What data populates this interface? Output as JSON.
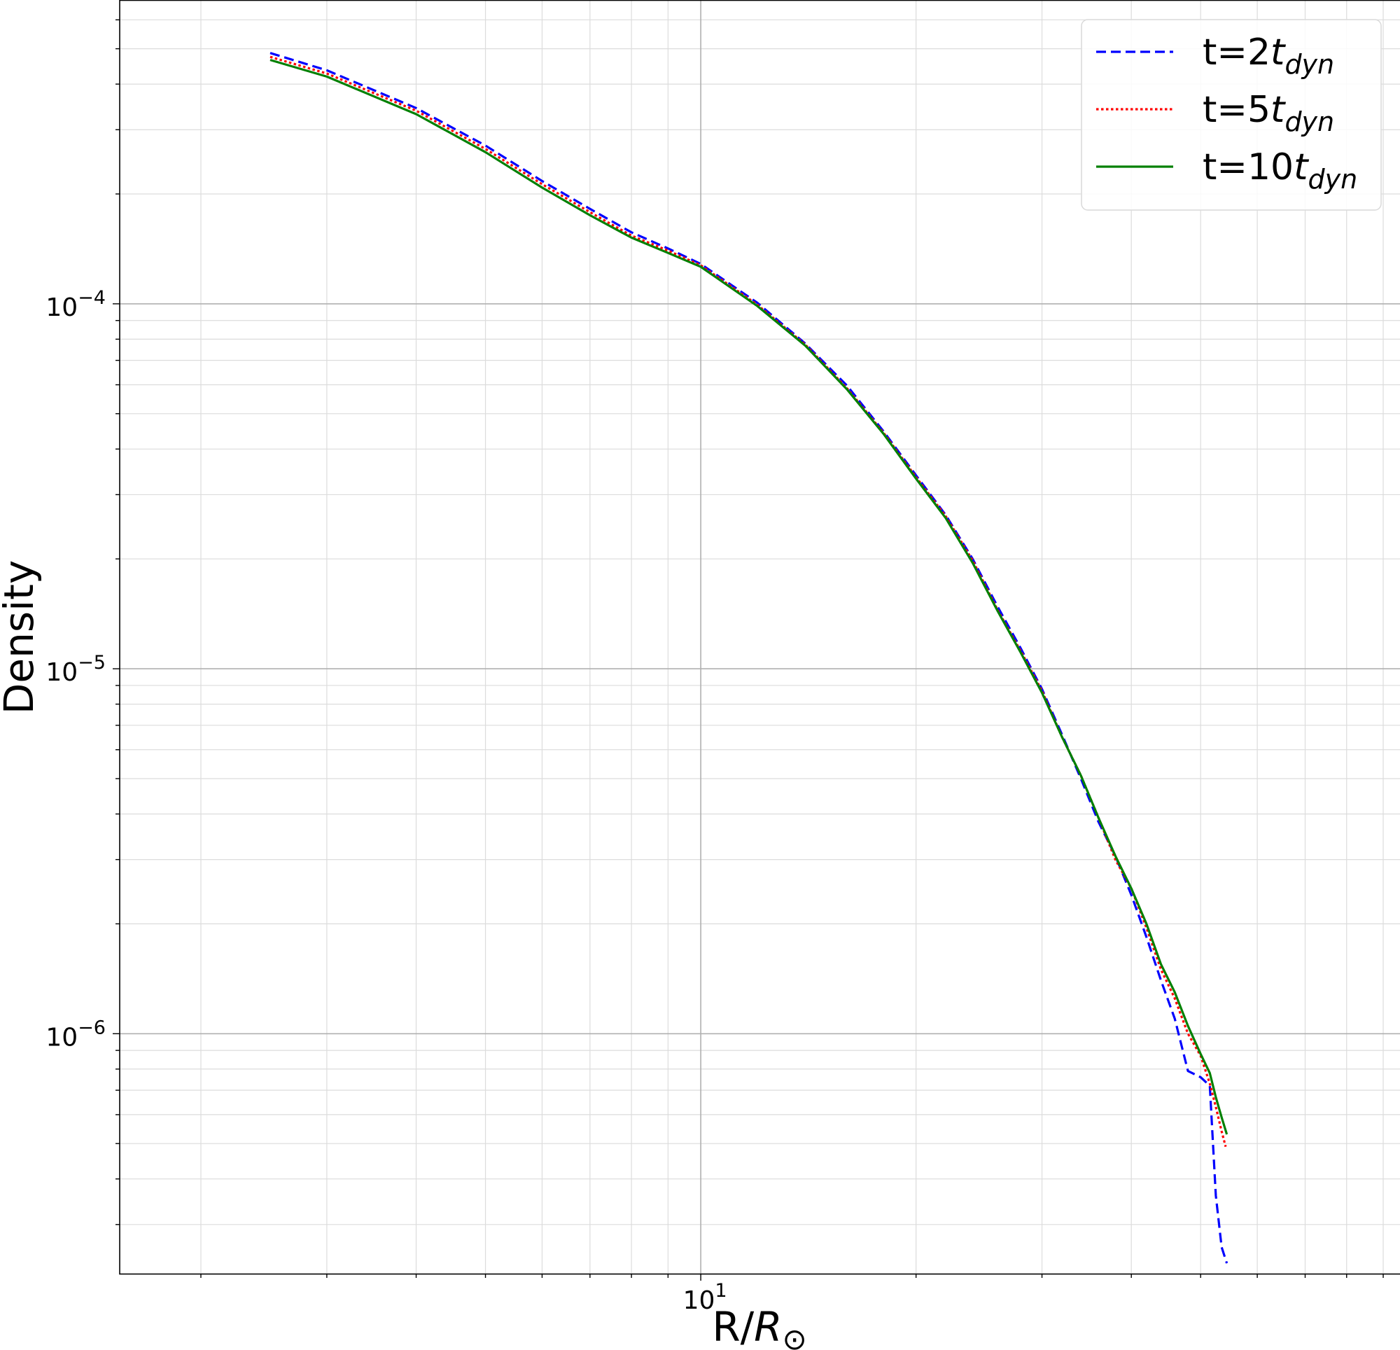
{
  "chart_data": {
    "type": "line",
    "xlabel": "R/R",
    "xlabel_sub": "⊙",
    "ylabel": "Density",
    "xscale": "log",
    "yscale": "log",
    "xlim": [
      1.54,
      95.0
    ],
    "ylim": [
      2.2e-07,
      0.00068
    ],
    "grid": true,
    "legend_position": "top-right",
    "x_tick_labels": [
      {
        "value": 10,
        "base": "10",
        "exp": "1"
      }
    ],
    "y_tick_labels": [
      {
        "value": 0.0001,
        "base": "10",
        "exp": "−4"
      },
      {
        "value": 1e-05,
        "base": "10",
        "exp": "−5"
      },
      {
        "value": 1e-06,
        "base": "10",
        "exp": "−6"
      }
    ],
    "series": [
      {
        "name": "t=2t",
        "name_sub": "dyn",
        "color": "#0000ff",
        "style": "dashed",
        "x": [
          2.5,
          3.0,
          4.0,
          5.0,
          6.0,
          7.0,
          8.0,
          9.0,
          10.0,
          12.0,
          14.0,
          16.0,
          18.0,
          20.0,
          22.0,
          24.0,
          26.0,
          28.0,
          30.0,
          32.0,
          34.0,
          36.0,
          38.0,
          40.0,
          42.0,
          44.0,
          46.0,
          48.0,
          50.0,
          51.5,
          52.5,
          53.5,
          54.4
        ],
        "y": [
          0.0004866,
          0.0004363,
          0.0003439,
          0.0002714,
          0.000217,
          0.000182,
          0.000157,
          0.0001418,
          0.0001286,
          0.0001006,
          7.78e-05,
          5.98e-05,
          4.48e-05,
          3.39e-05,
          2.64e-05,
          2e-05,
          1.48e-05,
          1.14e-05,
          8.8e-06,
          6.6e-06,
          5e-06,
          3.8e-06,
          3.07e-06,
          2.4e-06,
          1.84e-06,
          1.4e-06,
          1.1e-06,
          7.9e-07,
          7.6e-07,
          7.2e-07,
          3.6e-07,
          2.6e-07,
          2.35e-07
        ]
      },
      {
        "name": "t=5t",
        "name_sub": "dyn",
        "color": "#ff0000",
        "style": "dotted",
        "x": [
          2.5,
          3.0,
          4.0,
          5.0,
          6.0,
          7.0,
          8.0,
          9.0,
          10.0,
          12.0,
          14.0,
          16.0,
          18.0,
          20.0,
          22.0,
          24.0,
          26.0,
          28.0,
          30.0,
          32.0,
          34.0,
          36.0,
          38.0,
          40.0,
          42.0,
          44.0,
          46.0,
          48.0,
          50.0,
          51.5,
          52.5,
          53.5,
          54.2
        ],
        "y": [
          0.000475,
          0.0004276,
          0.0003382,
          0.0002657,
          0.0002128,
          0.0001783,
          0.0001538,
          0.0001399,
          0.0001275,
          9.94e-05,
          7.73e-05,
          5.88e-05,
          4.44e-05,
          3.35e-05,
          2.62e-05,
          1.98e-05,
          1.45e-05,
          1.12e-05,
          8.7e-06,
          6.5e-06,
          5.1e-06,
          3.9e-06,
          3e-06,
          2.5e-06,
          1.95e-06,
          1.5e-06,
          1.25e-06,
          1e-06,
          8.7e-07,
          7.3e-07,
          6.3e-07,
          5.4e-07,
          4.9e-07
        ]
      },
      {
        "name": "t=10t",
        "name_sub": "dyn",
        "color": "#008000",
        "style": "solid",
        "x": [
          2.5,
          3.0,
          4.0,
          5.0,
          6.0,
          7.0,
          8.0,
          9.0,
          10.0,
          12.0,
          14.0,
          16.0,
          18.0,
          20.0,
          22.0,
          24.0,
          26.0,
          28.0,
          30.0,
          32.0,
          34.0,
          36.0,
          38.0,
          40.0,
          42.0,
          44.0,
          46.0,
          48.0,
          50.0,
          51.5,
          52.5,
          53.5,
          54.4
        ],
        "y": [
          0.0004658,
          0.0004193,
          0.000331,
          0.0002604,
          0.0002082,
          0.0001749,
          0.0001518,
          0.0001379,
          0.0001263,
          9.86e-05,
          7.68e-05,
          5.84e-05,
          4.41e-05,
          3.32e-05,
          2.59e-05,
          1.95e-05,
          1.44e-05,
          1.11e-05,
          8.6e-06,
          6.5e-06,
          5.1e-06,
          3.9e-06,
          3.07e-06,
          2.5e-06,
          2e-06,
          1.55e-06,
          1.3e-06,
          1.05e-06,
          8.8e-07,
          7.8e-07,
          6.7e-07,
          5.9e-07,
          5.3e-07
        ]
      }
    ]
  }
}
